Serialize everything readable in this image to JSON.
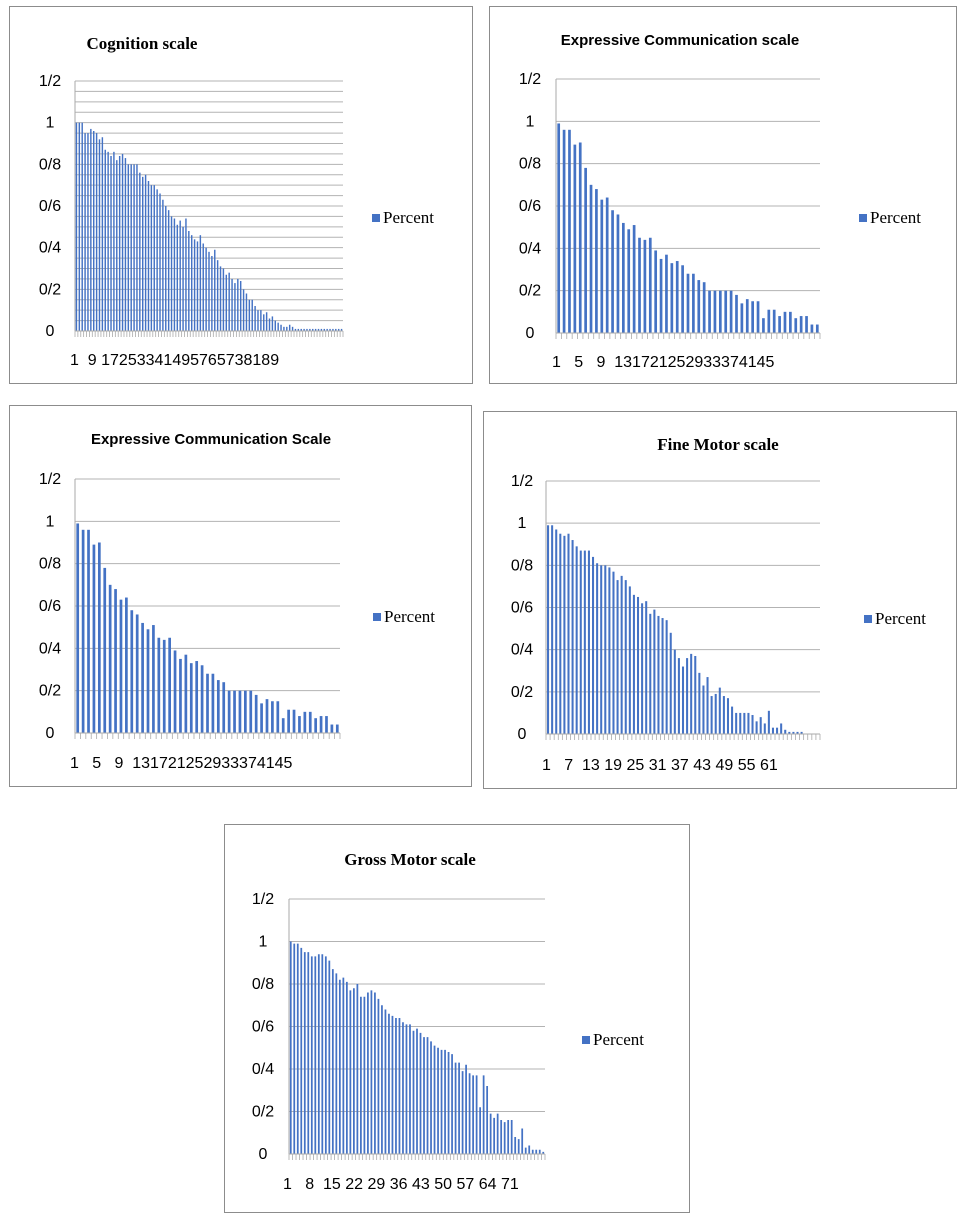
{
  "legend_color": "#4472c4",
  "grid_color": "#b3b3b3",
  "chart_data": [
    {
      "type": "bar",
      "title": "Cognition scale",
      "title_style": "serif",
      "y_tick_labels": [
        "0",
        "0/2",
        "0/4",
        "0/6",
        "0/8",
        "1",
        "1/2"
      ],
      "ylim": [
        0,
        1.2
      ],
      "x_tick_labels": [
        "1",
        "9",
        "17",
        "25",
        "33",
        "41",
        "49",
        "57",
        "65",
        "73",
        "81",
        "89"
      ],
      "x_tick_text": "1  9 17253341495765738189",
      "legend": "Percent",
      "series": [
        {
          "name": "Percent",
          "values": [
            1.0,
            1.0,
            1.0,
            0.95,
            0.95,
            0.97,
            0.96,
            0.95,
            0.92,
            0.93,
            0.87,
            0.86,
            0.84,
            0.86,
            0.82,
            0.84,
            0.85,
            0.83,
            0.8,
            0.8,
            0.8,
            0.8,
            0.76,
            0.74,
            0.75,
            0.72,
            0.7,
            0.7,
            0.68,
            0.66,
            0.63,
            0.6,
            0.58,
            0.55,
            0.54,
            0.51,
            0.53,
            0.5,
            0.54,
            0.48,
            0.46,
            0.44,
            0.43,
            0.46,
            0.42,
            0.4,
            0.38,
            0.36,
            0.39,
            0.34,
            0.31,
            0.3,
            0.27,
            0.28,
            0.25,
            0.23,
            0.25,
            0.24,
            0.2,
            0.18,
            0.15,
            0.15,
            0.12,
            0.1,
            0.1,
            0.08,
            0.09,
            0.06,
            0.07,
            0.05,
            0.04,
            0.03,
            0.02,
            0.02,
            0.03,
            0.02,
            0.01,
            0.01,
            0.01,
            0.01,
            0.01,
            0.01,
            0.01,
            0.01,
            0.01,
            0.01,
            0.01,
            0.01,
            0.01,
            0.01,
            0.01,
            0.01,
            0.01
          ]
        }
      ],
      "grid": "dense"
    },
    {
      "type": "bar",
      "title": "Expressive Communication scale",
      "title_style": "sans",
      "y_tick_labels": [
        "0",
        "0/2",
        "0/4",
        "0/6",
        "0/8",
        "1",
        "1/2"
      ],
      "ylim": [
        0,
        1.2
      ],
      "x_tick_labels": [
        "1",
        "5",
        "9",
        "13",
        "17",
        "21",
        "25",
        "29",
        "33",
        "37",
        "41",
        "45"
      ],
      "x_tick_text": "1   5   9  131721252933374145",
      "legend": "Percent",
      "series": [
        {
          "name": "Percent",
          "values": [
            0.99,
            0.96,
            0.96,
            0.89,
            0.9,
            0.78,
            0.7,
            0.68,
            0.63,
            0.64,
            0.58,
            0.56,
            0.52,
            0.49,
            0.51,
            0.45,
            0.44,
            0.45,
            0.39,
            0.35,
            0.37,
            0.33,
            0.34,
            0.32,
            0.28,
            0.28,
            0.25,
            0.24,
            0.2,
            0.2,
            0.2,
            0.2,
            0.2,
            0.18,
            0.14,
            0.16,
            0.15,
            0.15,
            0.07,
            0.11,
            0.11,
            0.08,
            0.1,
            0.1,
            0.07,
            0.08,
            0.08,
            0.04,
            0.04
          ]
        }
      ],
      "grid": "major"
    },
    {
      "type": "bar",
      "title": "Expressive Communication Scale",
      "title_style": "sans",
      "y_tick_labels": [
        "0",
        "0/2",
        "0/4",
        "0/6",
        "0/8",
        "1",
        "1/2"
      ],
      "ylim": [
        0,
        1.2
      ],
      "x_tick_labels": [
        "1",
        "5",
        "9",
        "13",
        "17",
        "21",
        "25",
        "29",
        "33",
        "37",
        "41",
        "45"
      ],
      "x_tick_text": "1   5   9  131721252933374145",
      "legend": "Percent",
      "series": [
        {
          "name": "Percent",
          "values": [
            0.99,
            0.96,
            0.96,
            0.89,
            0.9,
            0.78,
            0.7,
            0.68,
            0.63,
            0.64,
            0.58,
            0.56,
            0.52,
            0.49,
            0.51,
            0.45,
            0.44,
            0.45,
            0.39,
            0.35,
            0.37,
            0.33,
            0.34,
            0.32,
            0.28,
            0.28,
            0.25,
            0.24,
            0.2,
            0.2,
            0.2,
            0.2,
            0.2,
            0.18,
            0.14,
            0.16,
            0.15,
            0.15,
            0.07,
            0.11,
            0.11,
            0.08,
            0.1,
            0.1,
            0.07,
            0.08,
            0.08,
            0.04,
            0.04
          ]
        }
      ],
      "grid": "major"
    },
    {
      "type": "bar",
      "title": "Fine Motor scale",
      "title_style": "serif",
      "y_tick_labels": [
        "0",
        "0/2",
        "0/4",
        "0/6",
        "0/8",
        "1",
        "1/2"
      ],
      "ylim": [
        0,
        1.2
      ],
      "x_tick_labels": [
        "1",
        "7",
        "13",
        "19",
        "25",
        "31",
        "37",
        "43",
        "49",
        "55",
        "61"
      ],
      "x_tick_text": "1   7  13 19 25 31 37 43 49 55 61",
      "legend": "Percent",
      "series": [
        {
          "name": "Percent",
          "values": [
            0.99,
            0.99,
            0.97,
            0.95,
            0.94,
            0.95,
            0.92,
            0.89,
            0.87,
            0.87,
            0.87,
            0.84,
            0.81,
            0.8,
            0.8,
            0.79,
            0.77,
            0.73,
            0.75,
            0.73,
            0.7,
            0.66,
            0.65,
            0.62,
            0.63,
            0.57,
            0.59,
            0.56,
            0.55,
            0.54,
            0.48,
            0.4,
            0.36,
            0.32,
            0.36,
            0.38,
            0.37,
            0.29,
            0.23,
            0.27,
            0.18,
            0.19,
            0.22,
            0.18,
            0.17,
            0.13,
            0.1,
            0.1,
            0.1,
            0.1,
            0.09,
            0.06,
            0.08,
            0.05,
            0.11,
            0.03,
            0.03,
            0.05,
            0.02,
            0.01,
            0.01,
            0.01,
            0.01,
            0.0,
            0.0,
            0.0,
            0.0
          ]
        }
      ],
      "grid": "major"
    },
    {
      "type": "bar",
      "title": "Gross Motor scale",
      "title_style": "serif",
      "y_tick_labels": [
        "0",
        "0/2",
        "0/4",
        "0/6",
        "0/8",
        "1",
        "1/2"
      ],
      "ylim": [
        0,
        1.2
      ],
      "x_tick_labels": [
        "1",
        "8",
        "15",
        "22",
        "29",
        "36",
        "43",
        "50",
        "57",
        "64",
        "71"
      ],
      "x_tick_text": "1   8  15 22 29 36 43 50 57 64 71",
      "legend": "Percent",
      "series": [
        {
          "name": "Percent",
          "values": [
            1.0,
            0.99,
            0.99,
            0.97,
            0.95,
            0.95,
            0.93,
            0.93,
            0.94,
            0.94,
            0.93,
            0.91,
            0.87,
            0.85,
            0.82,
            0.83,
            0.81,
            0.77,
            0.78,
            0.8,
            0.74,
            0.74,
            0.76,
            0.77,
            0.76,
            0.73,
            0.7,
            0.68,
            0.66,
            0.65,
            0.64,
            0.64,
            0.62,
            0.61,
            0.61,
            0.58,
            0.59,
            0.57,
            0.55,
            0.55,
            0.53,
            0.51,
            0.5,
            0.49,
            0.49,
            0.48,
            0.47,
            0.43,
            0.43,
            0.39,
            0.42,
            0.38,
            0.37,
            0.37,
            0.22,
            0.37,
            0.32,
            0.19,
            0.17,
            0.19,
            0.16,
            0.15,
            0.16,
            0.16,
            0.08,
            0.07,
            0.12,
            0.03,
            0.04,
            0.02,
            0.02,
            0.02,
            0.01
          ]
        }
      ],
      "grid": "major"
    }
  ]
}
